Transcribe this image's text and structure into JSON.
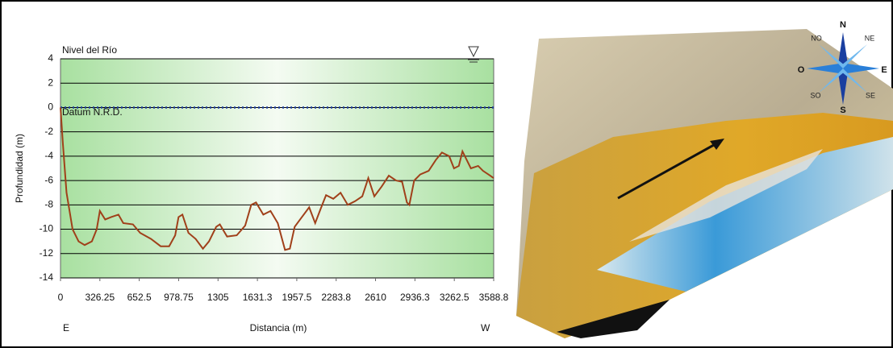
{
  "chart_data": {
    "type": "line",
    "x_label": "Distancia (m)",
    "y_label": "Profundidad (m)",
    "annotations": {
      "river_level": "Nivel del Río",
      "datum": "Datum N.R.D.",
      "left_end": "E",
      "right_end": "W"
    },
    "datum_value": 0,
    "x": [
      0,
      20,
      50,
      100,
      150,
      200,
      260,
      300,
      326,
      370,
      420,
      480,
      520,
      600,
      660,
      750,
      830,
      900,
      950,
      978,
      1010,
      1060,
      1120,
      1180,
      1230,
      1290,
      1320,
      1380,
      1460,
      1530,
      1580,
      1620,
      1680,
      1740,
      1800,
      1860,
      1900,
      1940,
      2000,
      2060,
      2110,
      2160,
      2200,
      2260,
      2320,
      2380,
      2440,
      2500,
      2550,
      2600,
      2660,
      2720,
      2780,
      2830,
      2870,
      2890,
      2930,
      2980,
      3050,
      3110,
      3160,
      3220,
      3260,
      3300,
      3330,
      3370,
      3400,
      3460,
      3500,
      3560,
      3588
    ],
    "series": [
      {
        "color": "#a0401a",
        "values": [
          0,
          -3,
          -7,
          -10,
          -11,
          -11.3,
          -11,
          -10,
          -8.5,
          -9.2,
          -9,
          -8.8,
          -9.5,
          -9.6,
          -10.3,
          -10.8,
          -11.4,
          -11.4,
          -10.5,
          -9,
          -8.8,
          -10.3,
          -10.8,
          -11.6,
          -11,
          -9.8,
          -9.6,
          -10.6,
          -10.5,
          -9.7,
          -8,
          -7.8,
          -8.8,
          -8.5,
          -9.5,
          -11.7,
          -11.6,
          -9.8,
          -9,
          -8.2,
          -9.5,
          -8.2,
          -7.2,
          -7.5,
          -7,
          -8,
          -7.7,
          -7.3,
          -5.8,
          -7.3,
          -6.5,
          -5.6,
          -6,
          -6.1,
          -7.8,
          -8,
          -6,
          -5.5,
          -5.2,
          -4.3,
          -3.7,
          -4,
          -5,
          -4.8,
          -3.6,
          -4.4,
          -5,
          -4.8,
          -5.2,
          -5.6,
          -5.8
        ]
      }
    ],
    "xlim": [
      0,
      3588.8
    ],
    "xticks": [
      0,
      326.25,
      652.5,
      978.75,
      1305,
      1631.3,
      1957.5,
      2283.8,
      2610,
      2936.3,
      3262.5,
      3588.8
    ],
    "ylim": [
      -14,
      4
    ],
    "yticks": [
      -14,
      -12,
      -10,
      -8,
      -6,
      -4,
      -2,
      0,
      2,
      4
    ],
    "grid": true
  },
  "compass": {
    "N": "N",
    "NE": "NE",
    "E": "E",
    "SE": "SE",
    "S": "S",
    "SO": "SO",
    "O": "O",
    "NO": "NO"
  }
}
